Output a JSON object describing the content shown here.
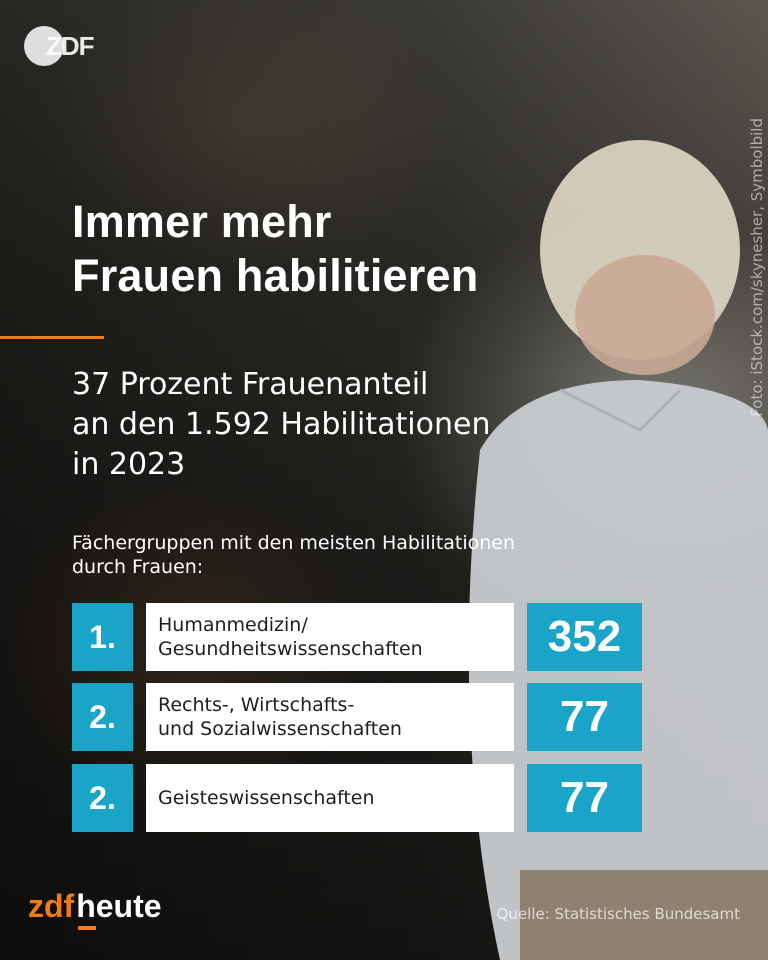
{
  "broadcaster_logo": "ZDF",
  "headline": [
    "Immer mehr",
    "Frauen habilitieren"
  ],
  "subhead": [
    "37 Prozent Frauenanteil",
    "an den 1.592 Habilitationen",
    "in 2023"
  ],
  "caption": [
    "Fächergruppen mit den meisten Habilitationen",
    "durch Frauen:"
  ],
  "ranking": [
    {
      "rank": "1.",
      "subject": "Humanmedizin/\nGesundheitswissenschaften",
      "count": "352"
    },
    {
      "rank": "2.",
      "subject": "Rechts-, Wirtschafts-\nund Sozialwissenschaften",
      "count": "77"
    },
    {
      "rank": "2.",
      "subject": "Geisteswissenschaften",
      "count": "77"
    }
  ],
  "photo_credit": "Foto: iStock.com/skynesher, Symbolbild",
  "footer": {
    "brand_zdf": "zdf",
    "brand_heute": "heute",
    "source": "Quelle: Statistisches Bundesamt"
  },
  "colors": {
    "accent_orange": "#f07d14",
    "accent_teal": "#1aa5c8"
  }
}
